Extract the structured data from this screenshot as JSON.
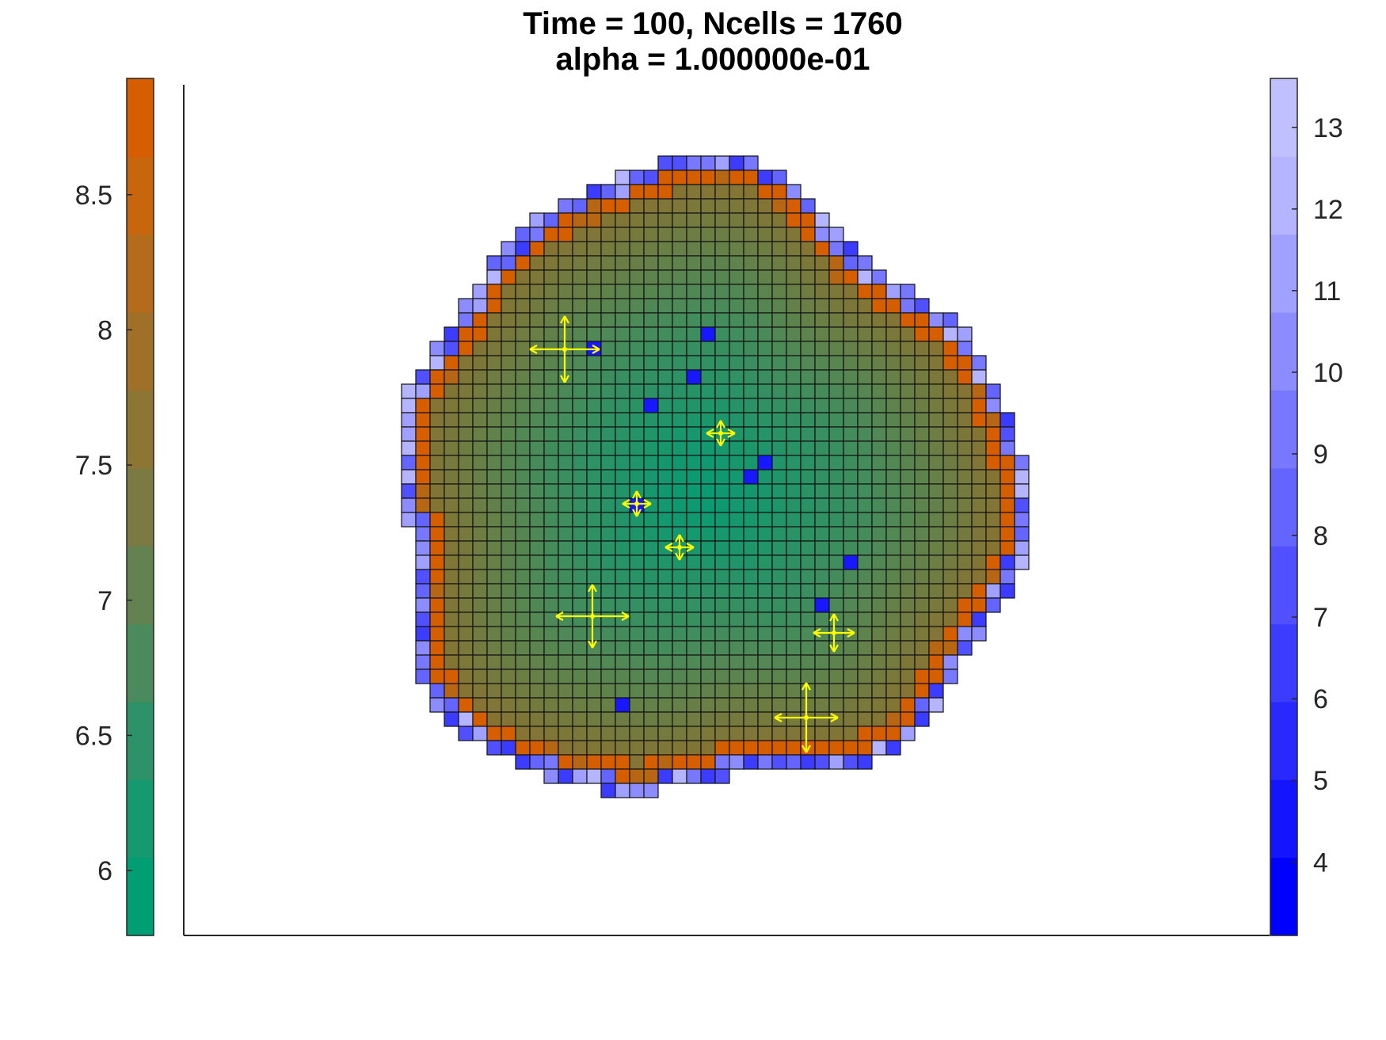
{
  "title_line_1": "Time = 100, Ncells = 1760",
  "title_line_2": "alpha = 1.000000e-01",
  "chart_data": [
    {
      "type": "heatmap",
      "title": "Time = 100, Ncells = 1760",
      "subtitle": "alpha = 1.000000e-01",
      "cell_grid": {
        "row_range_px_note": "square lattice of cells forming a roughly circular colony; interior colored by left colorbar, boundary cells colored by right colorbar",
        "rows": 47,
        "columns": 50
      },
      "interior_colorbar": {
        "position": "left",
        "ticks": [
          "6",
          "6.5",
          "7",
          "7.5",
          "8",
          "8.5"
        ],
        "tick_values": [
          6,
          6.5,
          7,
          7.5,
          8,
          8.5
        ],
        "range": [
          5.76,
          8.93
        ],
        "colors": [
          "#009e73",
          "#149a6e",
          "#2d9267",
          "#4a8a5c",
          "#638151",
          "#7b7a42",
          "#8d7533",
          "#a07028",
          "#b46b1b",
          "#c8660e",
          "#d55e00"
        ]
      },
      "boundary_colorbar": {
        "position": "right",
        "ticks": [
          "4",
          "5",
          "6",
          "7",
          "8",
          "9",
          "10",
          "11",
          "12",
          "13"
        ],
        "tick_values": [
          4,
          5,
          6,
          7,
          8,
          9,
          10,
          11,
          12,
          13
        ],
        "range": [
          3.1,
          13.6
        ],
        "colors": [
          "#0000ff",
          "#1414ff",
          "#2828ff",
          "#3c3cff",
          "#5050ff",
          "#6464ff",
          "#7878ff",
          "#8c8cff",
          "#a0a0ff",
          "#b4b4ff",
          "#c0c0ff"
        ]
      },
      "arrow_color": "#ffff00",
      "grid": false,
      "xlabel": "",
      "ylabel": ""
    }
  ]
}
